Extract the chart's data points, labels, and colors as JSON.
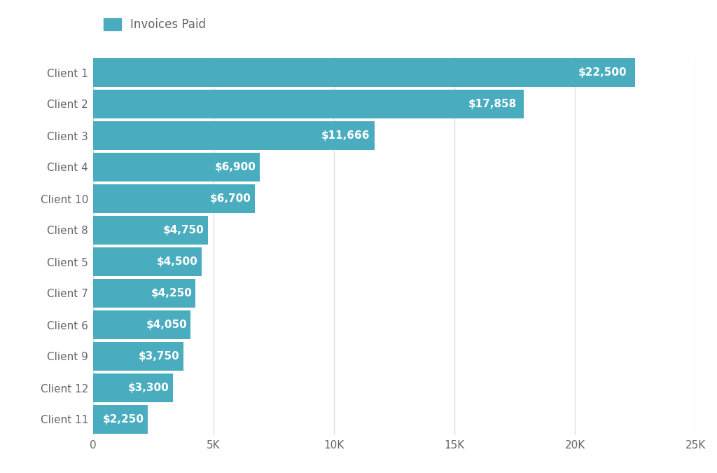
{
  "clients": [
    "Client 1",
    "Client 2",
    "Client 3",
    "Client 4",
    "Client 10",
    "Client 8",
    "Client 5",
    "Client 7",
    "Client 6",
    "Client 9",
    "Client 12",
    "Client 11"
  ],
  "values": [
    22500,
    17858,
    11666,
    6900,
    6700,
    4750,
    4500,
    4250,
    4050,
    3750,
    3300,
    2250
  ],
  "labels": [
    "$22,500",
    "$17,858",
    "$11,666",
    "$6,900",
    "$6,700",
    "$4,750",
    "$4,500",
    "$4,250",
    "$4,050",
    "$3,750",
    "$3,300",
    "$2,250"
  ],
  "bar_color": "#4AACBF",
  "label_color": "#ffffff",
  "legend_label": "Invoices Paid",
  "xlim": [
    0,
    25000
  ],
  "xticks": [
    0,
    5000,
    10000,
    15000,
    20000,
    25000
  ],
  "xtick_labels": [
    "0",
    "5K",
    "10K",
    "15K",
    "20K",
    "25K"
  ],
  "background_color": "#ffffff",
  "grid_color": "#e0e0e0",
  "label_fontsize": 11,
  "tick_fontsize": 11,
  "legend_fontsize": 12,
  "bar_height": 0.92,
  "tick_color": "#666666"
}
